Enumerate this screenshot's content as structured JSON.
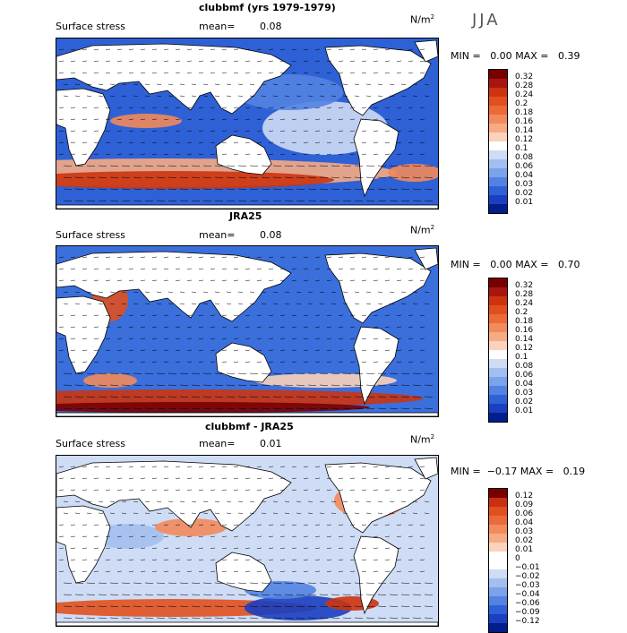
{
  "season": "JJA",
  "panels": [
    {
      "title": "clubbmf (yrs 1979-1979)",
      "left_label": "Surface stress",
      "mean_label": "mean=",
      "mean_value": "0.08",
      "units": "N/m",
      "units_sup": "2",
      "min_label": "MIN =",
      "min_value": "0.00",
      "max_label": "MAX =",
      "max_value": "0.39",
      "colorbar_labels": [
        "0.32",
        "0.28",
        "0.24",
        "0.2",
        "0.18",
        "0.16",
        "0.14",
        "0.12",
        "0.1",
        "0.08",
        "0.06",
        "0.04",
        "0.03",
        "0.02",
        "0.01"
      ]
    },
    {
      "title": "JRA25",
      "left_label": "Surface stress",
      "mean_label": "mean=",
      "mean_value": "0.08",
      "units": "N/m",
      "units_sup": "2",
      "min_label": "MIN =",
      "min_value": "0.00",
      "max_label": "MAX =",
      "max_value": "0.70",
      "colorbar_labels": [
        "0.32",
        "0.28",
        "0.24",
        "0.2",
        "0.18",
        "0.16",
        "0.14",
        "0.12",
        "0.1",
        "0.08",
        "0.06",
        "0.04",
        "0.03",
        "0.02",
        "0.01"
      ]
    },
    {
      "title": "clubbmf - JRA25",
      "left_label": "Surface stress",
      "mean_label": "mean=",
      "mean_value": "0.01",
      "units": "N/m",
      "units_sup": "2",
      "min_label": "MIN =",
      "min_value": "−0.17",
      "max_label": "MAX =",
      "max_value": "0.19",
      "colorbar_labels": [
        "0.12",
        "0.09",
        "0.06",
        "0.04",
        "0.03",
        "0.02",
        "0.01",
        "0",
        "−0.01",
        "−0.02",
        "−0.03",
        "−0.04",
        "−0.06",
        "−0.09",
        "−0.12"
      ]
    }
  ],
  "colors": {
    "positive_scale": [
      "#7a0000",
      "#a8160f",
      "#cc3410",
      "#e0501f",
      "#ec6a3a",
      "#f28a5c",
      "#f6ab85",
      "#fbd2bb",
      "#ffffff",
      "#cfdcf5",
      "#a3bff0",
      "#7ba2ea",
      "#5283e2",
      "#2f61d6",
      "#1a3fc0",
      "#001f8c"
    ],
    "diff_scale": [
      "#7a0000",
      "#c8300f",
      "#e0501f",
      "#ec6a3a",
      "#f28a5c",
      "#f6ab85",
      "#fbd2bb",
      "#ffffff",
      "#ffffff",
      "#cfdcf5",
      "#a3bff0",
      "#7ba2ea",
      "#5283e2",
      "#2f61d6",
      "#1a3fc0",
      "#001f8c"
    ],
    "land": "#ffffff",
    "coast": "#000000",
    "arrow": "#000000"
  }
}
